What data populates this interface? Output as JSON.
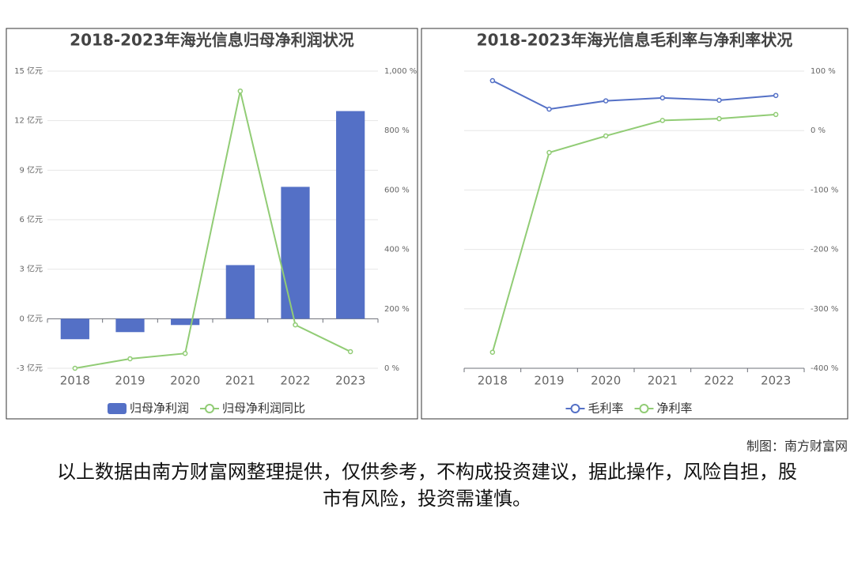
{
  "chart_data": [
    {
      "type": "bar",
      "title": "2018-2023年海光信息归母净利润状况",
      "categories": [
        "2018",
        "2019",
        "2020",
        "2021",
        "2022",
        "2023"
      ],
      "series": [
        {
          "name": "归母净利润",
          "type": "bar",
          "color": "#5470c6",
          "values": [
            -1.24,
            -0.81,
            -0.38,
            3.25,
            7.99,
            12.58
          ]
        },
        {
          "name": "归母净利润同比",
          "type": "line",
          "axis": "y2",
          "color": "#91cc75",
          "values": [
            0,
            32,
            50,
            933,
            146,
            56
          ]
        }
      ],
      "ylim": [
        -3,
        15
      ],
      "yticks": [
        {
          "value": -3,
          "label": "-3 亿元"
        },
        {
          "value": 0,
          "label": "0 亿元"
        },
        {
          "value": 3,
          "label": "3 亿元"
        },
        {
          "value": 6,
          "label": "6 亿元"
        },
        {
          "value": 9,
          "label": "9 亿元"
        },
        {
          "value": 12,
          "label": "12 亿元"
        },
        {
          "value": 15,
          "label": "15 亿元"
        }
      ],
      "y2lim": [
        0,
        1000
      ],
      "y2ticks": [
        {
          "value": 0,
          "label": "0 %"
        },
        {
          "value": 200,
          "label": "200 %"
        },
        {
          "value": 400,
          "label": "400 %"
        },
        {
          "value": 600,
          "label": "600 %"
        },
        {
          "value": 800,
          "label": "800 %"
        },
        {
          "value": 1000,
          "label": "1,000 %"
        }
      ],
      "grid": true
    },
    {
      "type": "line",
      "title": "2018-2023年海光信息毛利率与净利率状况",
      "categories": [
        "2018",
        "2019",
        "2020",
        "2021",
        "2022",
        "2023"
      ],
      "series": [
        {
          "name": "毛利率",
          "type": "line",
          "axis": "y2",
          "color": "#5470c6",
          "values": [
            84,
            36,
            50,
            55,
            51,
            59
          ]
        },
        {
          "name": "净利率",
          "type": "line",
          "axis": "y2",
          "color": "#91cc75",
          "values": [
            -373,
            -37,
            -9,
            17,
            20,
            27
          ]
        }
      ],
      "y2lim": [
        -400,
        100
      ],
      "y2ticks": [
        {
          "value": -400,
          "label": "-400 %"
        },
        {
          "value": -300,
          "label": "-300 %"
        },
        {
          "value": -200,
          "label": "-200 %"
        },
        {
          "value": -100,
          "label": "-100 %"
        },
        {
          "value": 0,
          "label": "0 %"
        },
        {
          "value": 100,
          "label": "100 %"
        }
      ],
      "grid": true
    }
  ],
  "credit": "制图：南方财富网",
  "disclaimer": "以上数据由南方财富网整理提供，仅供参考，不构成投资建议，据此操作，风险自担，股市有风险，投资需谨慎。"
}
